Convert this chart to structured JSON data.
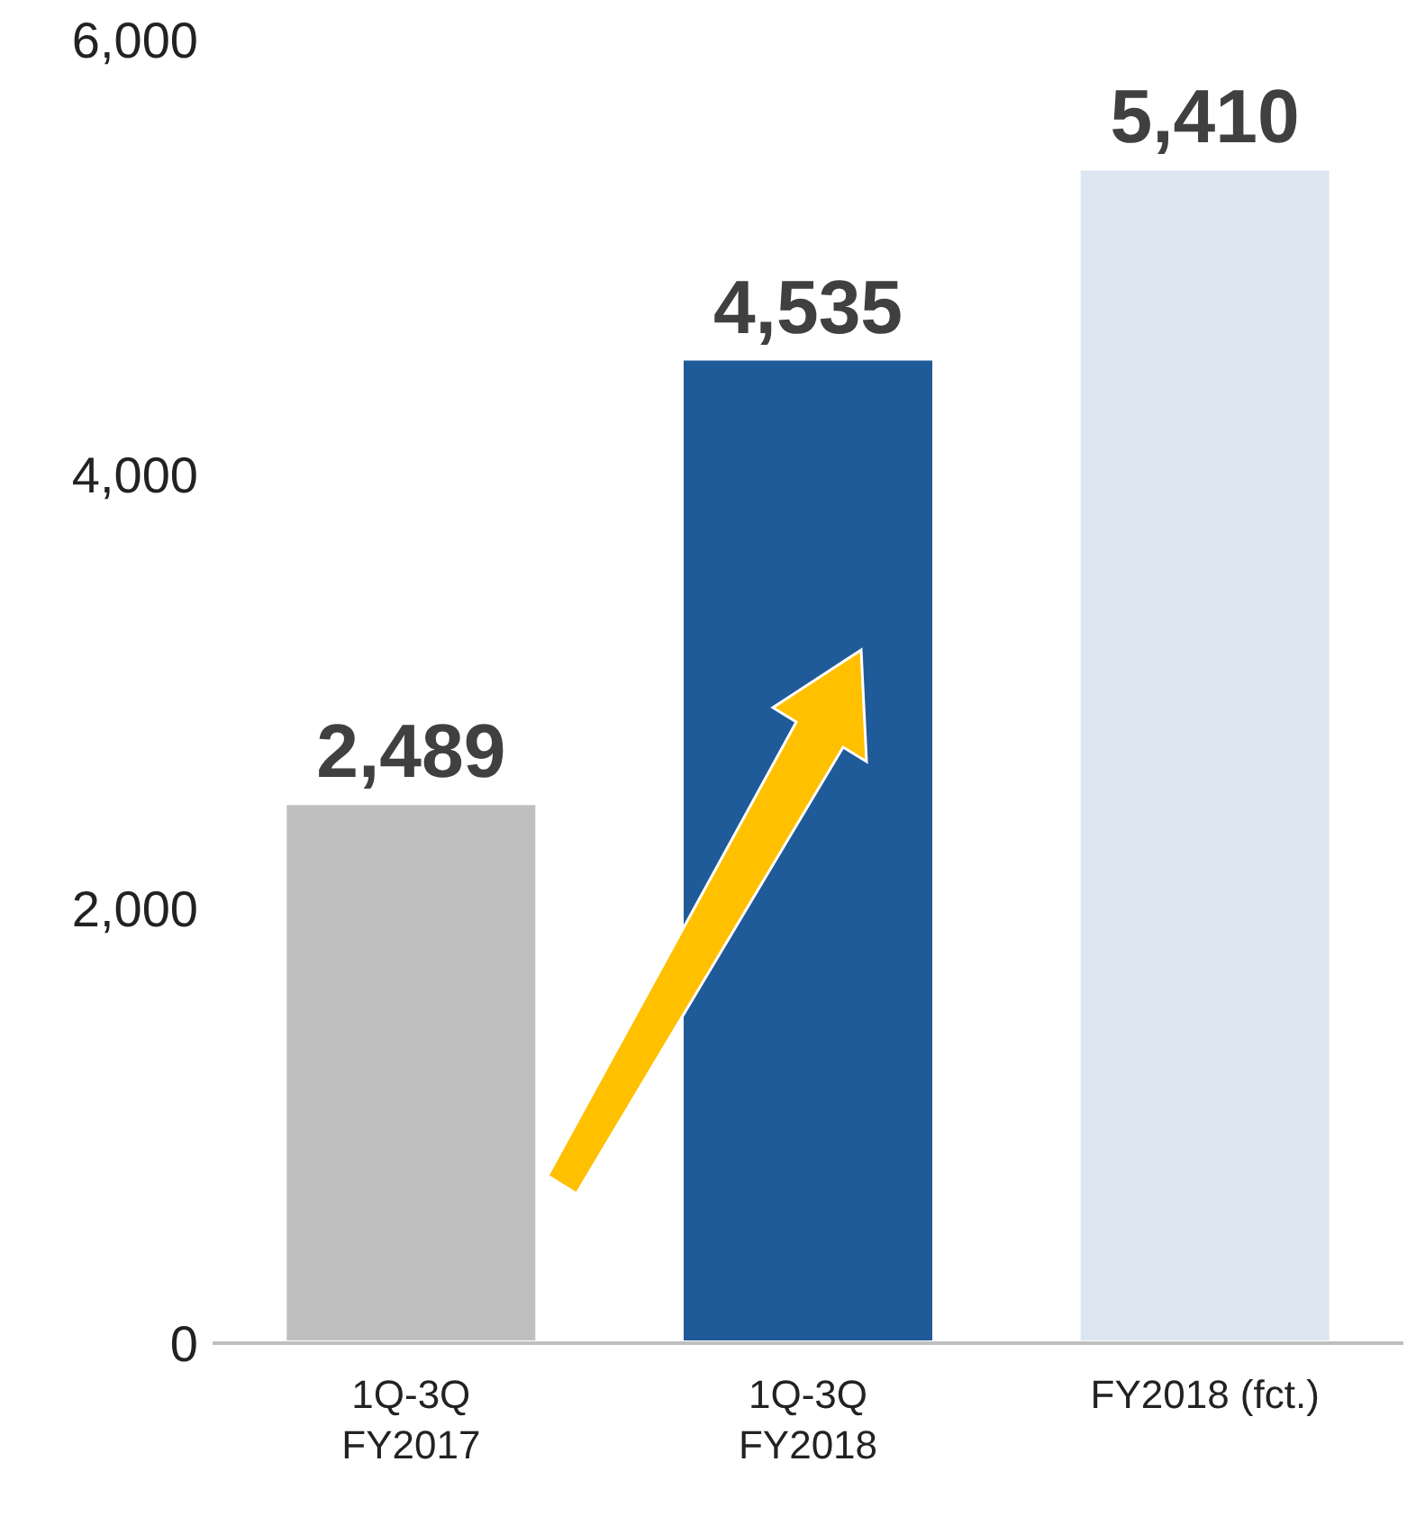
{
  "chart_data": {
    "type": "bar",
    "categories": [
      "1Q-3Q\nFY2017",
      "1Q-3Q\nFY2018",
      "FY2018 (fct.)"
    ],
    "values": [
      2489,
      4535,
      5410
    ],
    "colors": [
      "#bfbfbf",
      "#1f5a99",
      "#dce6f0"
    ],
    "ylim": [
      0,
      6000
    ],
    "yticks": [
      {
        "value": 0,
        "label": "0"
      },
      {
        "value": 2000,
        "label": "2,000"
      },
      {
        "value": 4000,
        "label": "4,000"
      },
      {
        "value": 6000,
        "label": "6,000"
      }
    ],
    "value_labels": [
      "2,489",
      "4,535",
      "5,410"
    ],
    "grid": false,
    "legend": false
  }
}
